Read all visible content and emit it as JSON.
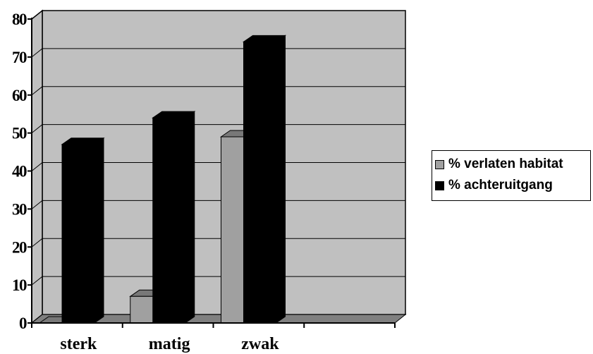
{
  "chart_data": {
    "type": "bar",
    "categories": [
      "sterk",
      "matig",
      "zwak"
    ],
    "series": [
      {
        "name": "% verlaten habitat",
        "values": [
          0,
          7,
          49
        ],
        "color": "#a0a0a0"
      },
      {
        "name": "% achteruitgang",
        "values": [
          47,
          54,
          74
        ],
        "color": "#000000"
      }
    ],
    "ylim": [
      0,
      80
    ],
    "yticks": [
      "0",
      "10",
      "20",
      "30",
      "40",
      "50",
      "60",
      "70",
      "80"
    ],
    "grid": true,
    "three_d": true,
    "plot_background": "#c0c0c0",
    "legend_position": "right"
  }
}
